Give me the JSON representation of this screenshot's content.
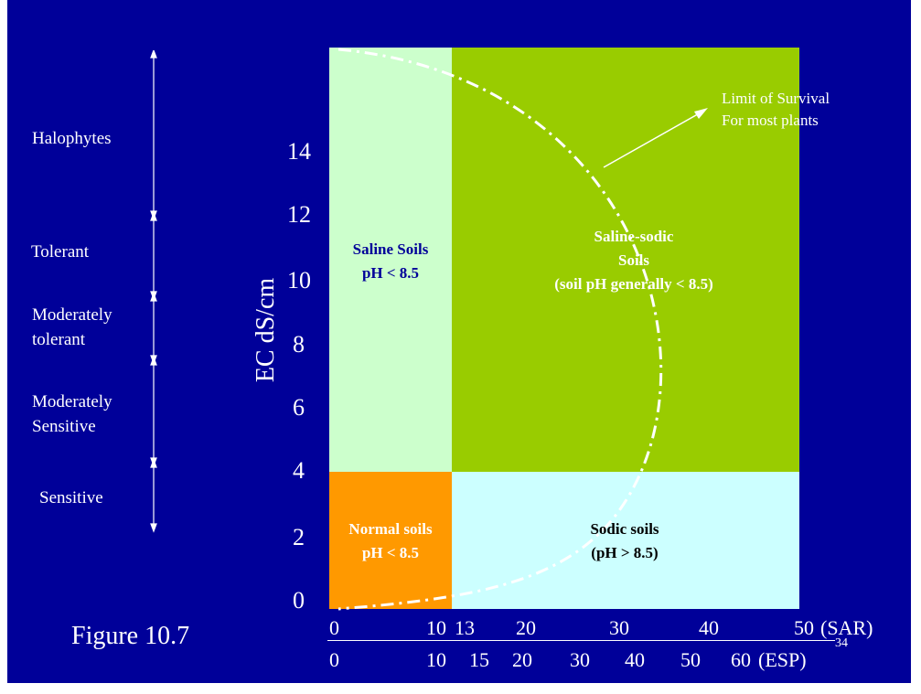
{
  "title": "Figure 10.7",
  "slide_number": "34",
  "y_axis": {
    "label": "EC dS/cm",
    "ticks": [
      "0",
      "2",
      "4",
      "6",
      "8",
      "10",
      "12",
      "14"
    ]
  },
  "x_axis_sar": {
    "ticks": [
      "0",
      "10",
      "13",
      "20",
      "30",
      "40",
      "50"
    ],
    "unit": "(SAR)"
  },
  "x_axis_esp": {
    "ticks": [
      "0",
      "10",
      "15",
      "20",
      "30",
      "40",
      "50",
      "60"
    ],
    "unit": "(ESP)"
  },
  "zones": {
    "saline": {
      "line1": "Saline Soils",
      "line2": "pH < 8.5"
    },
    "saline_sodic": {
      "line1": "Saline-sodic",
      "line2": "Soils",
      "line3": "(soil pH generally < 8.5)"
    },
    "normal": {
      "line1": "Normal soils",
      "line2": "pH < 8.5"
    },
    "sodic": {
      "line1": "Sodic soils",
      "line2": "(pH > 8.5)"
    }
  },
  "annotation": {
    "line1": "Limit of Survival",
    "line2": "For most plants"
  },
  "tolerance_classes": {
    "halophytes": "Halophytes",
    "tolerant": "Tolerant",
    "mod_tolerant_1": "Moderately",
    "mod_tolerant_2": "tolerant",
    "mod_sensitive_1": "Moderately",
    "mod_sensitive_2": "Sensitive",
    "sensitive": "Sensitive"
  },
  "colors": {
    "background": "#000099",
    "saline": "#ccffcc",
    "saline_sodic": "#99cc00",
    "normal": "#ff9900",
    "sodic": "#ccffff",
    "text_dark": "#000099",
    "text_white": "#ffffff"
  }
}
